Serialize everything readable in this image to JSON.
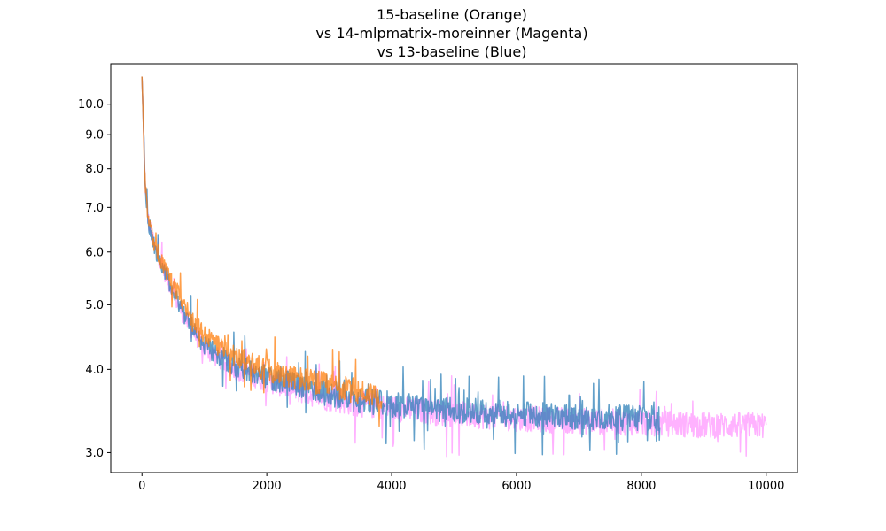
{
  "chart_data": {
    "type": "line",
    "title_lines": [
      "15-baseline (Orange)",
      "vs 14-mlpmatrix-moreinner (Magenta)",
      "vs 13-baseline (Blue)"
    ],
    "xlabel": "",
    "ylabel": "",
    "xlim": [
      -500,
      10500
    ],
    "ylim": [
      2.8,
      11.5
    ],
    "yscale": "log",
    "x_ticks": [
      0,
      2000,
      4000,
      6000,
      8000,
      10000
    ],
    "x_tick_labels": [
      "0",
      "2000",
      "4000",
      "6000",
      "8000",
      "10000"
    ],
    "y_ticks": [
      3.0,
      4.0,
      5.0,
      6.0,
      7.0,
      8.0,
      9.0,
      10.0
    ],
    "y_tick_labels": [
      "3.0",
      "4.0",
      "5.0",
      "6.0",
      "7.0",
      "8.0",
      "9.0",
      "10.0"
    ],
    "grid": false,
    "legend": "none",
    "series": [
      {
        "name": "14-mlpmatrix-moreinner (Magenta)",
        "color": "#ff66ff",
        "opacity": 0.5,
        "x": [
          0,
          50,
          100,
          200,
          300,
          500,
          700,
          1000,
          1500,
          2000,
          2500,
          3000,
          3500,
          4000,
          5000,
          6000,
          7000,
          8000,
          8300,
          8500,
          9000,
          9500,
          10000
        ],
        "y": [
          11.0,
          7.6,
          6.7,
          6.1,
          5.8,
          5.2,
          4.75,
          4.3,
          4.0,
          3.85,
          3.72,
          3.62,
          3.55,
          3.5,
          3.43,
          3.38,
          3.35,
          3.33,
          3.32,
          3.32,
          3.3,
          3.3,
          3.3
        ]
      },
      {
        "name": "13-baseline (Blue)",
        "color": "#1f77b4",
        "opacity": 0.7,
        "x": [
          0,
          50,
          100,
          200,
          300,
          500,
          700,
          1000,
          1500,
          2000,
          2500,
          3000,
          3500,
          4000,
          5000,
          6000,
          7000,
          8000,
          8300
        ],
        "y": [
          11.0,
          7.6,
          6.7,
          6.1,
          5.8,
          5.25,
          4.8,
          4.35,
          4.05,
          3.9,
          3.78,
          3.68,
          3.6,
          3.55,
          3.48,
          3.43,
          3.4,
          3.38,
          3.37
        ]
      },
      {
        "name": "15-baseline (Orange)",
        "color": "#ff7f0e",
        "opacity": 0.75,
        "x": [
          0,
          50,
          100,
          200,
          300,
          500,
          700,
          1000,
          1500,
          2000,
          2500,
          3000,
          3500,
          3850
        ],
        "y": [
          11.0,
          7.6,
          6.75,
          6.15,
          5.85,
          5.35,
          4.95,
          4.5,
          4.18,
          4.0,
          3.88,
          3.78,
          3.7,
          3.65
        ]
      }
    ]
  }
}
